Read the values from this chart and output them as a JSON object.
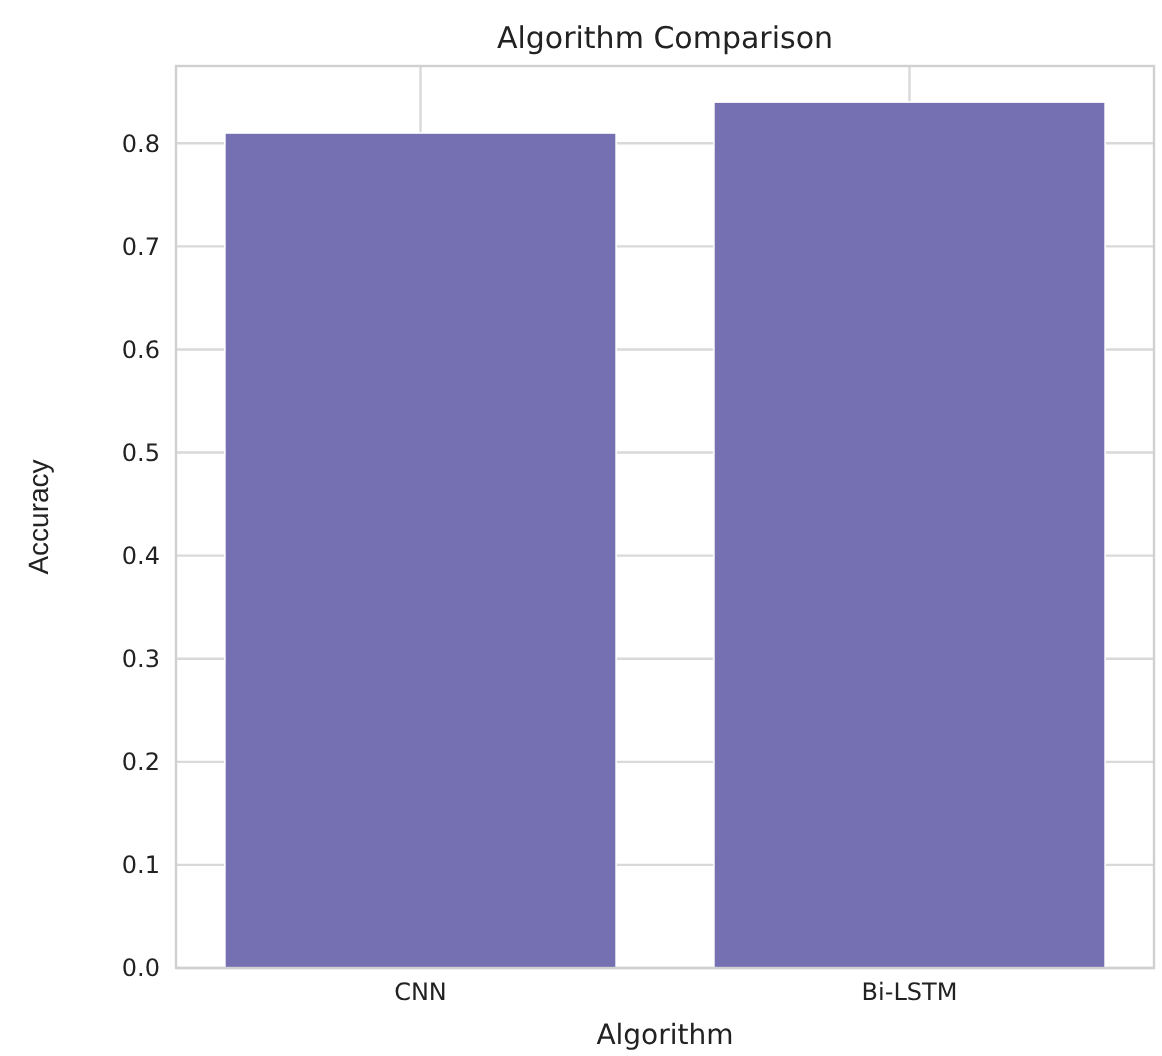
{
  "chart_data": {
    "type": "bar",
    "title": "Algorithm Comparison",
    "xlabel": "Algorithm",
    "ylabel": "Accuracy",
    "categories": [
      "CNN",
      "Bi-LSTM"
    ],
    "values": [
      0.81,
      0.84
    ],
    "color": "#7470b2",
    "ylim": [
      0,
      0.875
    ],
    "yticks": [
      {
        "value": 0,
        "label": "0.0"
      },
      0.1,
      0.2,
      0.3,
      0.4,
      0.5,
      0.6,
      0.7,
      0.8
    ],
    "grid": true
  }
}
